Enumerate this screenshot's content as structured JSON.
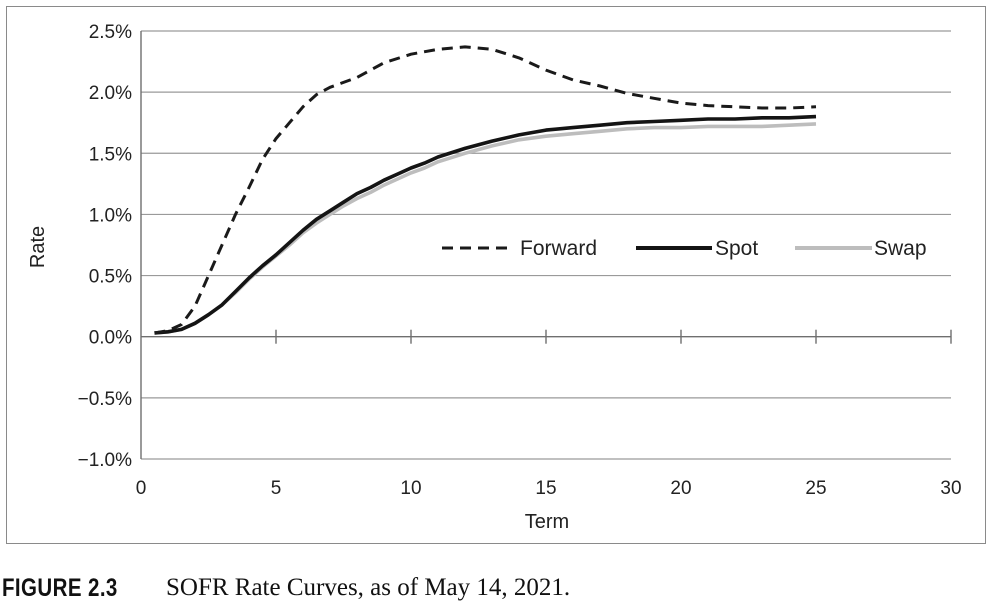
{
  "figure": {
    "label": "FIGURE 2.3",
    "title": "SOFR Rate Curves, as of May 14, 2021."
  },
  "chart_data": {
    "type": "line",
    "title": "",
    "xlabel": "Term",
    "ylabel": "Rate",
    "xlim": [
      0,
      30
    ],
    "ylim": [
      -1.0,
      2.5
    ],
    "x_ticks": [
      0,
      5,
      10,
      15,
      20,
      25,
      30
    ],
    "x_tick_labels": [
      "0",
      "5",
      "10",
      "15",
      "20",
      "25",
      "30"
    ],
    "y_ticks": [
      -1.0,
      -0.5,
      0.0,
      0.5,
      1.0,
      1.5,
      2.0,
      2.5
    ],
    "y_tick_labels": [
      "−1.0%",
      "−0.5%",
      "0.0%",
      "0.5%",
      "1.0%",
      "1.5%",
      "2.0%",
      "2.5%"
    ],
    "grid": "horizontal",
    "legend_position": "center-right",
    "series": [
      {
        "name": "Forward",
        "style": "dashed",
        "color": "#1a1a1a",
        "x": [
          0.5,
          1,
          1.5,
          2,
          2.5,
          3,
          3.5,
          4,
          4.5,
          5,
          5.5,
          6,
          6.5,
          7,
          8,
          9,
          10,
          11,
          12,
          13,
          14,
          15,
          16,
          17,
          18,
          19,
          20,
          21,
          22,
          23,
          24,
          25
        ],
        "y": [
          0.03,
          0.05,
          0.1,
          0.25,
          0.5,
          0.75,
          1.0,
          1.22,
          1.45,
          1.62,
          1.75,
          1.88,
          1.98,
          2.04,
          2.12,
          2.24,
          2.31,
          2.35,
          2.37,
          2.35,
          2.28,
          2.18,
          2.1,
          2.05,
          1.99,
          1.95,
          1.91,
          1.89,
          1.88,
          1.87,
          1.87,
          1.88
        ]
      },
      {
        "name": "Spot",
        "style": "solid",
        "color": "#141414",
        "x": [
          0.5,
          1,
          1.5,
          2,
          2.5,
          3,
          3.5,
          4,
          4.5,
          5,
          5.5,
          6,
          6.5,
          7,
          7.5,
          8,
          8.5,
          9,
          9.5,
          10,
          10.5,
          11,
          12,
          13,
          14,
          15,
          16,
          17,
          18,
          19,
          20,
          21,
          22,
          23,
          24,
          25
        ],
        "y": [
          0.03,
          0.04,
          0.06,
          0.11,
          0.18,
          0.26,
          0.37,
          0.48,
          0.58,
          0.67,
          0.77,
          0.87,
          0.96,
          1.03,
          1.1,
          1.17,
          1.22,
          1.28,
          1.33,
          1.38,
          1.42,
          1.47,
          1.54,
          1.6,
          1.65,
          1.69,
          1.71,
          1.73,
          1.75,
          1.76,
          1.77,
          1.78,
          1.78,
          1.79,
          1.79,
          1.8
        ]
      },
      {
        "name": "Swap",
        "style": "solid",
        "color": "#bdbdbd",
        "x": [
          0.5,
          1,
          1.5,
          2,
          2.5,
          3,
          3.5,
          4,
          4.5,
          5,
          5.5,
          6,
          6.5,
          7,
          7.5,
          8,
          8.5,
          9,
          9.5,
          10,
          10.5,
          11,
          12,
          13,
          14,
          15,
          16,
          17,
          18,
          19,
          20,
          21,
          22,
          23,
          24,
          25
        ],
        "y": [
          0.03,
          0.04,
          0.06,
          0.11,
          0.18,
          0.26,
          0.36,
          0.47,
          0.57,
          0.66,
          0.75,
          0.85,
          0.93,
          1.0,
          1.07,
          1.13,
          1.18,
          1.24,
          1.29,
          1.34,
          1.38,
          1.43,
          1.5,
          1.56,
          1.61,
          1.64,
          1.66,
          1.68,
          1.7,
          1.71,
          1.71,
          1.72,
          1.72,
          1.72,
          1.73,
          1.74
        ]
      }
    ]
  }
}
